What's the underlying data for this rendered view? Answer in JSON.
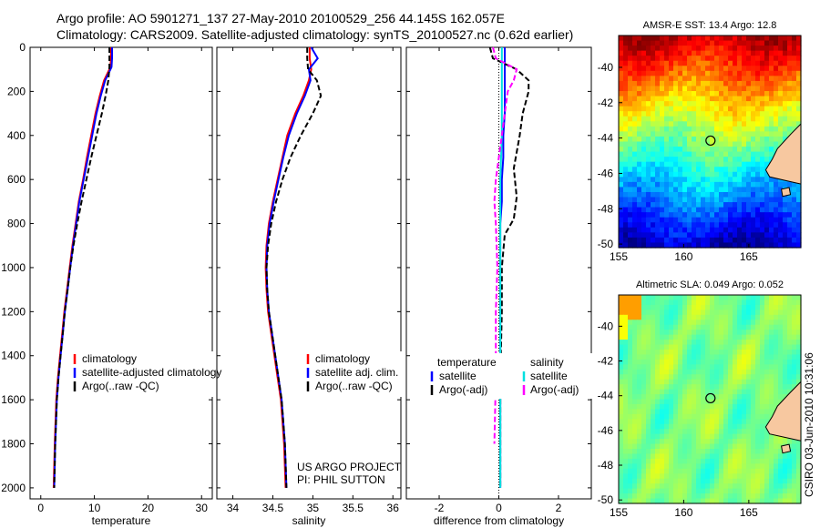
{
  "header": {
    "line1": "Argo profile: AO 5901271_137 27-May-2010 20100529_256 44.145S 162.057E",
    "line2": "Climatology: CARS2009. Satellite-adjusted climatology: synTS_20100527.nc (0.62d earlier)"
  },
  "side_stamp": "CSIRO 03-Jun-2010 10:31:06",
  "colors": {
    "clim": "#ff0000",
    "sat": "#0000ff",
    "argo": "#000000",
    "cyan": "#00e0e0",
    "magenta": "#ff00ff",
    "land": "#f7c8a0"
  },
  "chart_data": [
    {
      "type": "line",
      "xlabel": "temperature",
      "xticks": [
        0,
        10,
        20,
        30
      ],
      "xlim": [
        -2,
        32
      ],
      "yticks": [
        0,
        200,
        400,
        600,
        800,
        1000,
        1200,
        1400,
        1600,
        1800,
        2000
      ],
      "ylim": [
        2050,
        0
      ],
      "legend": {
        "placement": "lower-center",
        "entries": [
          "climatology",
          "satellite-adjusted climatology",
          "Argo(..raw -QC)"
        ]
      },
      "series": [
        {
          "name": "climatology",
          "color": "#ff0000",
          "x": [
            13.1,
            13.1,
            13.0,
            11.8,
            11.0,
            10.2,
            9.4,
            8.6,
            7.9,
            7.1,
            6.5,
            5.9,
            5.4,
            4.9,
            4.4,
            4.0,
            3.6,
            3.2,
            2.9,
            2.6,
            2.4
          ],
          "y": [
            0,
            50,
            90,
            150,
            220,
            300,
            400,
            500,
            600,
            700,
            800,
            900,
            1000,
            1100,
            1200,
            1300,
            1400,
            1500,
            1600,
            1800,
            2000
          ]
        },
        {
          "name": "satellite-adjusted climatology",
          "color": "#0000ff",
          "x": [
            13.3,
            13.3,
            13.2,
            12.0,
            11.2,
            10.4,
            9.6,
            8.8,
            8.0,
            7.2,
            6.6,
            6.0,
            5.5,
            5.0,
            4.5,
            4.1,
            3.7,
            3.3,
            3.0,
            2.7,
            2.5
          ],
          "y": [
            0,
            50,
            90,
            150,
            220,
            300,
            400,
            500,
            600,
            700,
            800,
            900,
            1000,
            1100,
            1200,
            1300,
            1400,
            1500,
            1600,
            1800,
            2000
          ]
        },
        {
          "name": "Argo(..raw -QC)",
          "color": "#000000",
          "dash": true,
          "x": [
            12.8,
            12.8,
            12.8,
            12.6,
            12.1,
            11.4,
            10.4,
            9.4,
            8.5,
            7.6,
            6.8,
            6.1,
            5.5,
            5.0,
            4.5,
            4.1,
            3.7,
            3.3,
            3.0,
            2.7,
            2.5
          ],
          "y": [
            0,
            50,
            90,
            150,
            220,
            300,
            400,
            500,
            600,
            700,
            800,
            900,
            1000,
            1100,
            1200,
            1300,
            1400,
            1500,
            1600,
            1800,
            2000
          ]
        }
      ]
    },
    {
      "type": "line",
      "xlabel": "salinity",
      "xticks": [
        34,
        34.5,
        35,
        35.5,
        36
      ],
      "xlim": [
        33.8,
        36.1
      ],
      "ylim": [
        2050,
        0
      ],
      "legend": {
        "placement": "lower-center",
        "entries": [
          "climatology",
          "satellite adj. clim.",
          "Argo(..raw -QC)"
        ]
      },
      "annotation": [
        "US ARGO PROJECT",
        "PI: PHIL SUTTON"
      ],
      "series": [
        {
          "name": "climatology",
          "color": "#ff0000",
          "x": [
            34.96,
            34.96,
            34.98,
            34.95,
            34.88,
            34.78,
            34.68,
            34.62,
            34.56,
            34.5,
            34.45,
            34.42,
            34.41,
            34.42,
            34.44,
            34.48,
            34.52,
            34.56,
            34.6,
            34.64,
            34.66
          ],
          "y": [
            0,
            50,
            100,
            150,
            220,
            300,
            400,
            500,
            600,
            700,
            800,
            900,
            1000,
            1100,
            1200,
            1300,
            1400,
            1500,
            1600,
            1800,
            2000
          ]
        },
        {
          "name": "satellite adj. clim.",
          "color": "#0000ff",
          "x": [
            34.98,
            35.06,
            34.95,
            34.97,
            34.9,
            34.8,
            34.7,
            34.63,
            34.57,
            34.51,
            34.46,
            34.43,
            34.42,
            34.43,
            34.45,
            34.49,
            34.53,
            34.57,
            34.61,
            34.65,
            34.67
          ],
          "y": [
            0,
            50,
            100,
            150,
            220,
            300,
            400,
            500,
            600,
            700,
            800,
            900,
            1000,
            1100,
            1200,
            1300,
            1400,
            1500,
            1600,
            1800,
            2000
          ]
        },
        {
          "name": "Argo(..raw -QC)",
          "color": "#000000",
          "dash": true,
          "x": [
            34.93,
            34.93,
            34.94,
            35.05,
            35.1,
            35.0,
            34.85,
            34.72,
            34.62,
            34.54,
            34.48,
            34.44,
            34.42,
            34.43,
            34.45,
            34.49,
            34.53,
            34.57,
            34.61,
            34.65,
            34.67
          ],
          "y": [
            0,
            50,
            100,
            150,
            220,
            300,
            400,
            500,
            600,
            700,
            800,
            900,
            1000,
            1100,
            1200,
            1300,
            1400,
            1500,
            1600,
            1800,
            2000
          ]
        }
      ]
    },
    {
      "type": "line",
      "xlabel": "difference from climatology",
      "xticks": [
        -2,
        0,
        2
      ],
      "xlim": [
        -3.1,
        3.1
      ],
      "ylim": [
        2050,
        0
      ],
      "legend": {
        "placement": "lower-center",
        "entries": [
          "temperature",
          "satellite",
          "Argo(-adj)",
          "salinity",
          "satellite",
          "Argo(-adj)"
        ]
      },
      "series": [
        {
          "name": "satellite",
          "color": "#0000ff",
          "x": [
            0.2,
            0.2,
            0.2,
            0.2,
            0.15,
            0.15,
            0.1,
            0.1,
            0.05,
            0.05,
            0.05,
            0.05,
            0.05,
            0.05
          ],
          "y": [
            0,
            100,
            200,
            300,
            400,
            500,
            600,
            700,
            800,
            1000,
            1200,
            1400,
            1600,
            2000
          ]
        },
        {
          "name": "Argo(-adj)",
          "color": "#000000",
          "dash": true,
          "x": [
            -0.3,
            -0.2,
            0.6,
            1.0,
            1.0,
            0.8,
            0.7,
            0.5,
            0.6,
            0.5,
            0.2,
            0.1,
            0.1,
            0.05,
            0.05
          ],
          "y": [
            0,
            50,
            100,
            150,
            200,
            300,
            400,
            550,
            680,
            780,
            850,
            1000,
            1200,
            1500,
            2000
          ]
        },
        {
          "name": "satellite",
          "color": "#00e0e0",
          "x": [
            0.1,
            0.1,
            0.1,
            0.1,
            0.05,
            0.05,
            0.05,
            0.05,
            0.05,
            0.05,
            0.05
          ],
          "y": [
            0,
            100,
            200,
            400,
            600,
            800,
            1000,
            1200,
            1400,
            1800,
            2000
          ]
        },
        {
          "name": "Argo(-adj)",
          "color": "#ff00ff",
          "dash": true,
          "x": [
            -0.2,
            -0.1,
            0.6,
            0.5,
            0.3,
            0.2,
            0.1,
            0.0,
            -0.1,
            -0.15,
            -0.1,
            -0.05,
            -0.1,
            -0.1,
            -0.15
          ],
          "y": [
            0,
            50,
            100,
            150,
            200,
            300,
            400,
            500,
            600,
            700,
            800,
            1000,
            1200,
            1500,
            1800
          ]
        }
      ]
    },
    {
      "type": "heatmap",
      "title": "AMSR-E SST: 13.4 Argo: 12.8",
      "xticks": [
        155,
        160,
        165
      ],
      "yticks": [
        -40,
        -42,
        -44,
        -46,
        -48,
        -50
      ],
      "xlim": [
        155,
        169
      ],
      "ylim": [
        -50.2,
        -38.2
      ],
      "argo_position": {
        "lon": 162.057,
        "lat": -44.145
      },
      "colormap": "jet"
    },
    {
      "type": "heatmap",
      "title": "Altimetric SLA: 0.049 Argo: 0.052",
      "xticks": [
        155,
        160,
        165
      ],
      "yticks": [
        -40,
        -42,
        -44,
        -46,
        -48,
        -50
      ],
      "xlim": [
        155,
        169
      ],
      "ylim": [
        -50.2,
        -38.2
      ],
      "argo_position": {
        "lon": 162.057,
        "lat": -44.145
      },
      "colormap": "jet"
    }
  ]
}
